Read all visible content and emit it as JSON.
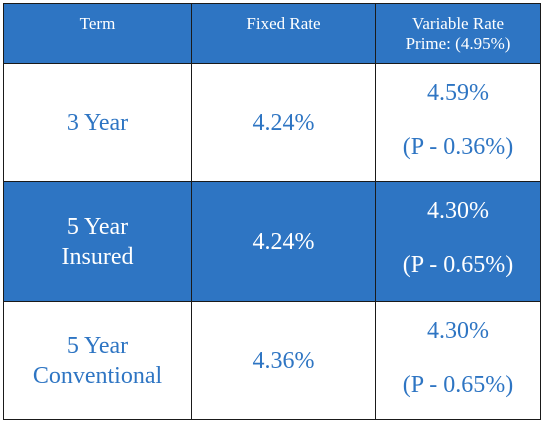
{
  "table": {
    "headers": {
      "term": "Term",
      "fixed": "Fixed Rate",
      "variable_line1": "Variable Rate",
      "variable_line2": "Prime: (4.95%)"
    },
    "rows": [
      {
        "term_line1": "3 Year",
        "term_line2": "",
        "fixed": "4.24%",
        "variable": "4.59%",
        "spread": "(P - 0.36%)"
      },
      {
        "term_line1": "5 Year",
        "term_line2": "Insured",
        "fixed": "4.24%",
        "variable": "4.30%",
        "spread": "(P - 0.65%)"
      },
      {
        "term_line1": "5 Year",
        "term_line2": "Conventional",
        "fixed": "4.36%",
        "variable": "4.30%",
        "spread": "(P - 0.65%)"
      }
    ]
  },
  "colors": {
    "accent": "#2e75c3",
    "text_on_accent": "#ffffff",
    "border": "#1a1a1a"
  }
}
